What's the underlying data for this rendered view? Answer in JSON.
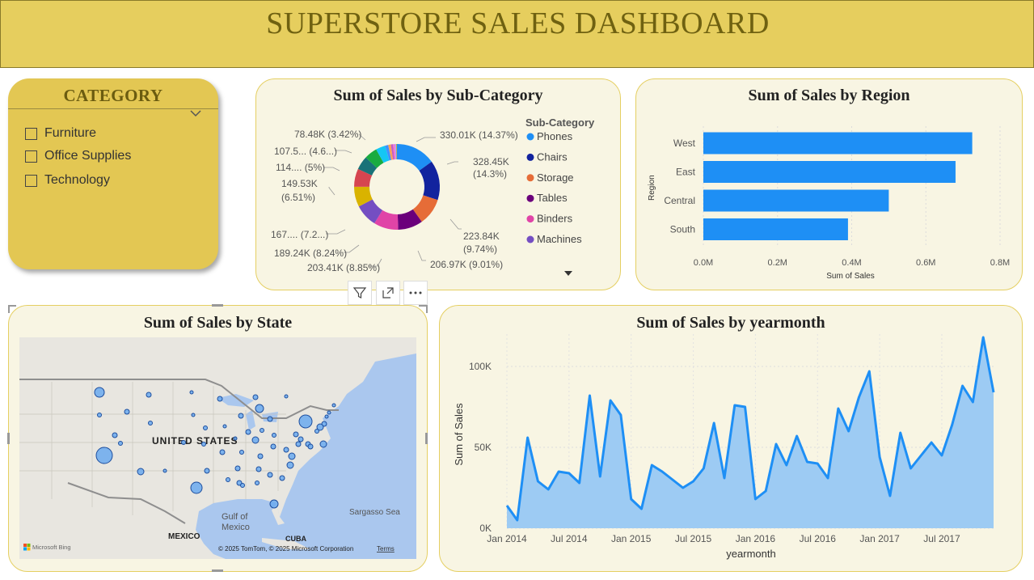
{
  "header": {
    "title": "SUPERSTORE SALES DASHBOARD"
  },
  "category_slicer": {
    "title": "CATEGORY",
    "items": [
      {
        "label": "Furniture",
        "checked": false
      },
      {
        "label": "Office Supplies",
        "checked": false
      },
      {
        "label": "Technology",
        "checked": false
      }
    ]
  },
  "donut": {
    "title": "Sum of Sales by Sub-Category",
    "legend_title": "Sub-Category",
    "legend": [
      "Phones",
      "Chairs",
      "Storage",
      "Tables",
      "Binders",
      "Machines"
    ],
    "labels": [
      "330.01K (14.37%)",
      "328.45K",
      "(14.3%)",
      "223.84K",
      "(9.74%)",
      "206.97K (9.01%)",
      "203.41K (8.85%)",
      "189.24K (8.24%)",
      "167.... (7.2...)",
      "149.53K",
      "(6.51%)",
      "114.... (5%)",
      "107.5... (4.6...)",
      "78.48K (3.42%)"
    ]
  },
  "region": {
    "title": "Sum of Sales by Region",
    "ylabel": "Region",
    "xlabel": "Sum of Sales",
    "ticks": [
      "0.0M",
      "0.2M",
      "0.4M",
      "0.6M",
      "0.8M"
    ]
  },
  "map": {
    "title": "Sum of Sales by State",
    "labels": {
      "us": "UNITED STATES",
      "gulf1": "Gulf of",
      "gulf2": "Mexico",
      "mexico": "MEXICO",
      "cuba": "CUBA",
      "sargasso": "Sargasso Sea",
      "bing": "Microsoft Bing",
      "copyright": "© 2025 TomTom, © 2025 Microsoft Corporation",
      "terms": "Terms"
    },
    "toolbar_icons": [
      "filter-icon",
      "focus-mode-icon",
      "more-options-icon"
    ]
  },
  "line": {
    "title": "Sum of Sales by yearmonth",
    "ylabel": "Sum of Sales",
    "xlabel": "yearmonth",
    "yticks": [
      "0K",
      "50K",
      "100K"
    ],
    "xticks": [
      "Jan 2014",
      "Jul 2014",
      "Jan 2015",
      "Jul 2015",
      "Jan 2016",
      "Jul 2016",
      "Jan 2017",
      "Jul 2017"
    ]
  },
  "colors": {
    "banner": "#e6ce5e",
    "card_bg": "#f8f5e3",
    "bar": "#1e8ff5",
    "line": "#1e8ff5",
    "area": "#9dcbf3"
  },
  "chart_data": [
    {
      "type": "pie",
      "title": "Sum of Sales by Sub-Category",
      "legend_title": "Sub-Category",
      "categories": [
        "Phones",
        "Chairs",
        "Storage",
        "Tables",
        "Binders",
        "Machines",
        "",
        "",
        "",
        "",
        "",
        "",
        "",
        "",
        "",
        "",
        ""
      ],
      "values": [
        330.01,
        328.45,
        223.84,
        206.97,
        203.41,
        189.24,
        167.0,
        149.53,
        114.0,
        107.5,
        78.48,
        27.0,
        22.0,
        17.0,
        16.0,
        12.0,
        5.0
      ],
      "unit": "K"
    },
    {
      "type": "bar",
      "title": "Sum of Sales by Region",
      "categories": [
        "West",
        "East",
        "Central",
        "South"
      ],
      "values": [
        0.725,
        0.68,
        0.5,
        0.39
      ],
      "xlabel": "Sum of Sales",
      "ylabel": "Region",
      "xlim": [
        0,
        0.8
      ],
      "unit": "M",
      "orientation": "horizontal",
      "grid": true
    },
    {
      "type": "area",
      "title": "Sum of Sales by yearmonth",
      "xlabel": "yearmonth",
      "ylabel": "Sum of Sales",
      "ylim": [
        0,
        120
      ],
      "unit": "K",
      "x": [
        "2014-01",
        "2014-02",
        "2014-03",
        "2014-04",
        "2014-05",
        "2014-06",
        "2014-07",
        "2014-08",
        "2014-09",
        "2014-10",
        "2014-11",
        "2014-12",
        "2015-01",
        "2015-02",
        "2015-03",
        "2015-04",
        "2015-05",
        "2015-06",
        "2015-07",
        "2015-08",
        "2015-09",
        "2015-10",
        "2015-11",
        "2015-12",
        "2016-01",
        "2016-02",
        "2016-03",
        "2016-04",
        "2016-05",
        "2016-06",
        "2016-07",
        "2016-08",
        "2016-09",
        "2016-10",
        "2016-11",
        "2016-12",
        "2017-01",
        "2017-02",
        "2017-03",
        "2017-04",
        "2017-05",
        "2017-06",
        "2017-07",
        "2017-08",
        "2017-09",
        "2017-10",
        "2017-11",
        "2017-12"
      ],
      "y": [
        14,
        5,
        56,
        29,
        24,
        35,
        34,
        28,
        82,
        32,
        79,
        70,
        18,
        12,
        39,
        35,
        30,
        25,
        29,
        37,
        65,
        31,
        76,
        75,
        18,
        23,
        52,
        39,
        57,
        41,
        40,
        31,
        74,
        60,
        81,
        97,
        44,
        20,
        59,
        37,
        45,
        53,
        45,
        64,
        88,
        78,
        118,
        84
      ],
      "grid": true
    }
  ]
}
